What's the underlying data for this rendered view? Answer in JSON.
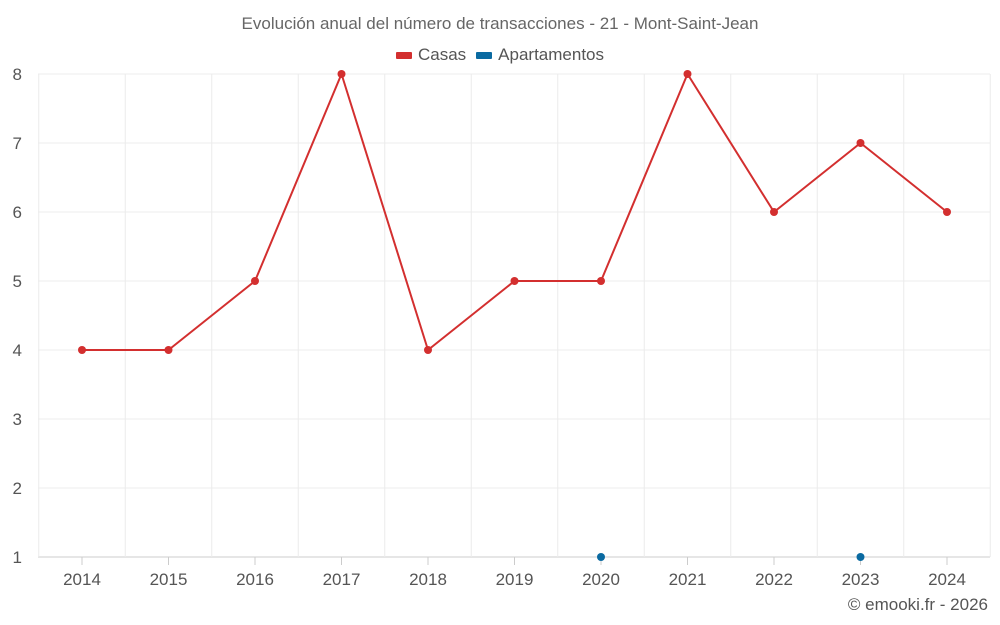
{
  "chart_data": {
    "type": "line",
    "title": "Evolución anual del número de transacciones - 21 - Mont-Saint-Jean",
    "xlabel": "",
    "ylabel": "",
    "categories": [
      "2014",
      "2015",
      "2016",
      "2017",
      "2018",
      "2019",
      "2020",
      "2021",
      "2022",
      "2023",
      "2024"
    ],
    "ylim": [
      1,
      8
    ],
    "yticks": [
      1,
      2,
      3,
      4,
      5,
      6,
      7,
      8
    ],
    "grid": true,
    "legend_position": "top-center",
    "series": [
      {
        "name": "Casas",
        "color": "#d32f2f",
        "values": [
          4,
          4,
          5,
          8,
          4,
          5,
          5,
          8,
          6,
          7,
          6
        ]
      },
      {
        "name": "Apartamentos",
        "color": "#0a6aa1",
        "values": [
          null,
          null,
          null,
          null,
          null,
          null,
          1,
          null,
          null,
          1,
          null
        ]
      }
    ]
  },
  "credit": "© emooki.fr - 2026"
}
